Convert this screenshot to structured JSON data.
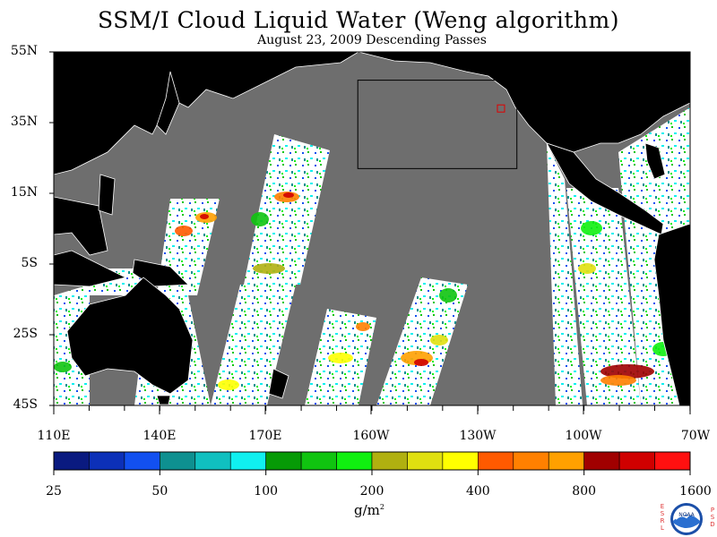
{
  "title": "SSM/I Cloud Liquid Water (Weng algorithm)",
  "subtitle": "August 23, 2009  Descending Passes",
  "map": {
    "projection": "equirectangular",
    "lon_range": [
      110,
      290
    ],
    "lat_range": [
      -45,
      55
    ],
    "land_color": "#000000",
    "no_data_color": "#6e6e6e",
    "clear_color": "#ffffff",
    "outline_color": "#ffffff",
    "lat_labels": [
      "55N",
      "35N",
      "15N",
      "5S",
      "25S",
      "45S"
    ],
    "lon_labels": [
      "110E",
      "140E",
      "170E",
      "160W",
      "130W",
      "100W",
      "70W"
    ],
    "highlight_box": {
      "lon": [
        196,
        241
      ],
      "lat": [
        22,
        47
      ],
      "color": "#000000"
    },
    "marker_box": {
      "lon": 236.5,
      "lat": 39,
      "color": "#e00000"
    }
  },
  "colorbar": {
    "colors": [
      "#0a1a80",
      "#0c30b8",
      "#1250f0",
      "#0e9090",
      "#10c0c0",
      "#10f0f0",
      "#069a06",
      "#10c410",
      "#10f010",
      "#b0b010",
      "#e0e010",
      "#ffff00",
      "#ff5a00",
      "#ff8000",
      "#ffa000",
      "#a00000",
      "#d00000",
      "#ff1010"
    ],
    "labels": [
      "25",
      "50",
      "100",
      "200",
      "400",
      "800",
      "1600"
    ],
    "units": "g/m",
    "units_exponent": "2"
  },
  "logo": {
    "name": "noaa-logo",
    "text": "NOAA",
    "left_letters": "ESRL",
    "right_letters": "PSD"
  }
}
